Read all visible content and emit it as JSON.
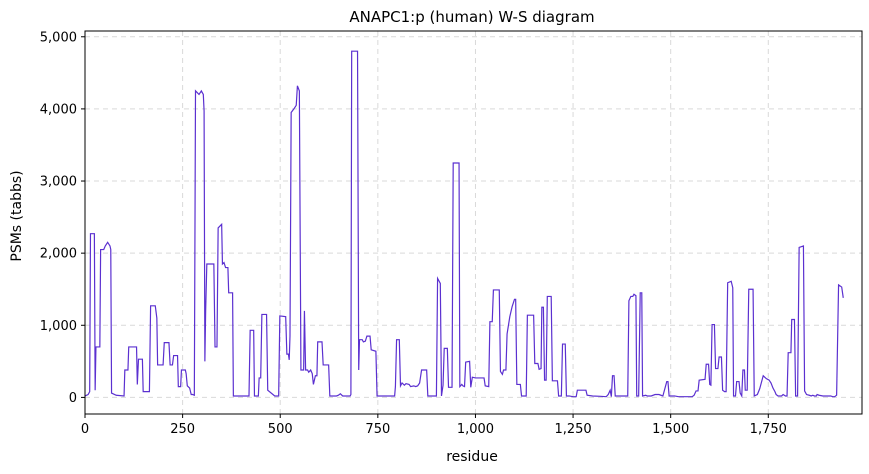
{
  "chart_data": {
    "type": "line",
    "title": "ANAPC1:p (human) W-S diagram",
    "xlabel": "residue",
    "ylabel": "PSMs (tabbs)",
    "xlim": [
      0,
      1990
    ],
    "ylim": [
      -230,
      5080
    ],
    "grid": true,
    "legend": "none",
    "colors": {
      "line": "#5b30d0"
    },
    "x_ticks": [
      {
        "value": 0,
        "label": "0"
      },
      {
        "value": 250,
        "label": "250"
      },
      {
        "value": 500,
        "label": "500"
      },
      {
        "value": 750,
        "label": "750"
      },
      {
        "value": 1000,
        "label": "1,000"
      },
      {
        "value": 1250,
        "label": "1,250"
      },
      {
        "value": 1500,
        "label": "1,500"
      },
      {
        "value": 1750,
        "label": "1,750"
      }
    ],
    "y_ticks": [
      {
        "value": 0,
        "label": "0"
      },
      {
        "value": 1000,
        "label": "1,000"
      },
      {
        "value": 2000,
        "label": "2,000"
      },
      {
        "value": 3000,
        "label": "3,000"
      },
      {
        "value": 4000,
        "label": "4,000"
      },
      {
        "value": 5000,
        "label": "5,000"
      }
    ],
    "series": [
      {
        "points": [
          [
            0,
            20
          ],
          [
            8,
            40
          ],
          [
            12,
            80
          ],
          [
            14,
            2270
          ],
          [
            24,
            2270
          ],
          [
            26,
            100
          ],
          [
            28,
            700
          ],
          [
            38,
            700
          ],
          [
            40,
            2050
          ],
          [
            48,
            2050
          ],
          [
            52,
            2100
          ],
          [
            58,
            2150
          ],
          [
            64,
            2100
          ],
          [
            66,
            2050
          ],
          [
            68,
            60
          ],
          [
            80,
            30
          ],
          [
            100,
            20
          ],
          [
            102,
            380
          ],
          [
            110,
            380
          ],
          [
            112,
            700
          ],
          [
            132,
            700
          ],
          [
            134,
            180
          ],
          [
            137,
            530
          ],
          [
            147,
            530
          ],
          [
            149,
            80
          ],
          [
            165,
            80
          ],
          [
            168,
            1270
          ],
          [
            180,
            1270
          ],
          [
            184,
            1100
          ],
          [
            186,
            450
          ],
          [
            200,
            450
          ],
          [
            203,
            760
          ],
          [
            215,
            760
          ],
          [
            218,
            450
          ],
          [
            224,
            450
          ],
          [
            227,
            580
          ],
          [
            237,
            580
          ],
          [
            239,
            150
          ],
          [
            245,
            150
          ],
          [
            247,
            380
          ],
          [
            257,
            380
          ],
          [
            259,
            330
          ],
          [
            262,
            160
          ],
          [
            268,
            130
          ],
          [
            272,
            40
          ],
          [
            276,
            40
          ],
          [
            280,
            30
          ],
          [
            283,
            4250
          ],
          [
            292,
            4200
          ],
          [
            298,
            4250
          ],
          [
            303,
            4200
          ],
          [
            305,
            3970
          ],
          [
            307,
            500
          ],
          [
            309,
            1200
          ],
          [
            312,
            1850
          ],
          [
            330,
            1850
          ],
          [
            333,
            700
          ],
          [
            338,
            700
          ],
          [
            341,
            2350
          ],
          [
            350,
            2400
          ],
          [
            352,
            1850
          ],
          [
            356,
            1870
          ],
          [
            360,
            1800
          ],
          [
            366,
            1800
          ],
          [
            368,
            1450
          ],
          [
            378,
            1450
          ],
          [
            380,
            20
          ],
          [
            420,
            20
          ],
          [
            423,
            930
          ],
          [
            432,
            930
          ],
          [
            434,
            20
          ],
          [
            444,
            20
          ],
          [
            446,
            270
          ],
          [
            450,
            270
          ],
          [
            453,
            1150
          ],
          [
            465,
            1150
          ],
          [
            468,
            100
          ],
          [
            486,
            20
          ],
          [
            496,
            20
          ],
          [
            499,
            1130
          ],
          [
            514,
            1120
          ],
          [
            517,
            600
          ],
          [
            521,
            600
          ],
          [
            523,
            520
          ],
          [
            525,
            850
          ],
          [
            528,
            3950
          ],
          [
            535,
            4000
          ],
          [
            541,
            4050
          ],
          [
            544,
            4320
          ],
          [
            549,
            4250
          ],
          [
            553,
            380
          ],
          [
            560,
            380
          ],
          [
            562,
            1200
          ],
          [
            565,
            380
          ],
          [
            570,
            380
          ],
          [
            573,
            350
          ],
          [
            578,
            380
          ],
          [
            582,
            330
          ],
          [
            585,
            180
          ],
          [
            590,
            300
          ],
          [
            594,
            300
          ],
          [
            596,
            770
          ],
          [
            607,
            770
          ],
          [
            610,
            450
          ],
          [
            624,
            450
          ],
          [
            627,
            20
          ],
          [
            640,
            20
          ],
          [
            644,
            20
          ],
          [
            649,
            30
          ],
          [
            654,
            50
          ],
          [
            660,
            20
          ],
          [
            667,
            20
          ],
          [
            679,
            20
          ],
          [
            681,
            40
          ],
          [
            683,
            4800
          ],
          [
            698,
            4800
          ],
          [
            701,
            380
          ],
          [
            703,
            800
          ],
          [
            710,
            800
          ],
          [
            713,
            770
          ],
          [
            718,
            780
          ],
          [
            722,
            850
          ],
          [
            730,
            850
          ],
          [
            733,
            660
          ],
          [
            745,
            640
          ],
          [
            748,
            20
          ],
          [
            793,
            20
          ],
          [
            795,
            150
          ],
          [
            798,
            800
          ],
          [
            805,
            800
          ],
          [
            808,
            160
          ],
          [
            812,
            200
          ],
          [
            818,
            170
          ],
          [
            822,
            190
          ],
          [
            830,
            180
          ],
          [
            834,
            150
          ],
          [
            842,
            160
          ],
          [
            847,
            150
          ],
          [
            852,
            160
          ],
          [
            857,
            200
          ],
          [
            862,
            380
          ],
          [
            875,
            380
          ],
          [
            878,
            20
          ],
          [
            900,
            20
          ],
          [
            903,
            1650
          ],
          [
            910,
            1580
          ],
          [
            913,
            20
          ],
          [
            917,
            170
          ],
          [
            920,
            680
          ],
          [
            928,
            680
          ],
          [
            931,
            140
          ],
          [
            940,
            140
          ],
          [
            943,
            3250
          ],
          [
            958,
            3250
          ],
          [
            960,
            150
          ],
          [
            965,
            180
          ],
          [
            968,
            160
          ],
          [
            972,
            150
          ],
          [
            975,
            490
          ],
          [
            985,
            500
          ],
          [
            988,
            140
          ],
          [
            992,
            280
          ],
          [
            1000,
            270
          ],
          [
            1022,
            270
          ],
          [
            1025,
            160
          ],
          [
            1034,
            150
          ],
          [
            1037,
            1050
          ],
          [
            1043,
            1050
          ],
          [
            1046,
            1490
          ],
          [
            1061,
            1490
          ],
          [
            1064,
            360
          ],
          [
            1069,
            320
          ],
          [
            1072,
            380
          ],
          [
            1078,
            380
          ],
          [
            1081,
            880
          ],
          [
            1088,
            1120
          ],
          [
            1094,
            1260
          ],
          [
            1100,
            1360
          ],
          [
            1103,
            1360
          ],
          [
            1106,
            180
          ],
          [
            1115,
            180
          ],
          [
            1118,
            20
          ],
          [
            1130,
            20
          ],
          [
            1133,
            1140
          ],
          [
            1149,
            1140
          ],
          [
            1152,
            470
          ],
          [
            1160,
            470
          ],
          [
            1163,
            390
          ],
          [
            1168,
            400
          ],
          [
            1170,
            1250
          ],
          [
            1174,
            1250
          ],
          [
            1177,
            240
          ],
          [
            1181,
            240
          ],
          [
            1184,
            1400
          ],
          [
            1194,
            1400
          ],
          [
            1197,
            230
          ],
          [
            1210,
            230
          ],
          [
            1213,
            20
          ],
          [
            1220,
            20
          ],
          [
            1223,
            740
          ],
          [
            1230,
            740
          ],
          [
            1233,
            20
          ],
          [
            1240,
            20
          ],
          [
            1250,
            10
          ],
          [
            1258,
            10
          ],
          [
            1261,
            100
          ],
          [
            1283,
            100
          ],
          [
            1286,
            30
          ],
          [
            1300,
            20
          ],
          [
            1320,
            15
          ],
          [
            1335,
            10
          ],
          [
            1340,
            40
          ],
          [
            1345,
            100
          ],
          [
            1348,
            10
          ],
          [
            1351,
            300
          ],
          [
            1355,
            300
          ],
          [
            1358,
            20
          ],
          [
            1370,
            20
          ],
          [
            1380,
            20
          ],
          [
            1390,
            20
          ],
          [
            1393,
            1340
          ],
          [
            1398,
            1400
          ],
          [
            1403,
            1400
          ],
          [
            1406,
            1430
          ],
          [
            1411,
            1410
          ],
          [
            1413,
            20
          ],
          [
            1418,
            20
          ],
          [
            1422,
            1450
          ],
          [
            1426,
            1450
          ],
          [
            1428,
            20
          ],
          [
            1436,
            30
          ],
          [
            1440,
            20
          ],
          [
            1450,
            20
          ],
          [
            1460,
            40
          ],
          [
            1470,
            40
          ],
          [
            1475,
            30
          ],
          [
            1480,
            20
          ],
          [
            1490,
            220
          ],
          [
            1493,
            220
          ],
          [
            1496,
            20
          ],
          [
            1510,
            20
          ],
          [
            1520,
            10
          ],
          [
            1540,
            10
          ],
          [
            1555,
            10
          ],
          [
            1560,
            30
          ],
          [
            1565,
            90
          ],
          [
            1570,
            90
          ],
          [
            1573,
            240
          ],
          [
            1588,
            250
          ],
          [
            1591,
            460
          ],
          [
            1597,
            460
          ],
          [
            1600,
            180
          ],
          [
            1603,
            170
          ],
          [
            1606,
            1010
          ],
          [
            1612,
            1010
          ],
          [
            1615,
            400
          ],
          [
            1621,
            400
          ],
          [
            1624,
            560
          ],
          [
            1630,
            560
          ],
          [
            1633,
            100
          ],
          [
            1638,
            80
          ],
          [
            1642,
            80
          ],
          [
            1646,
            1590
          ],
          [
            1655,
            1610
          ],
          [
            1659,
            1520
          ],
          [
            1661,
            20
          ],
          [
            1666,
            20
          ],
          [
            1669,
            220
          ],
          [
            1675,
            220
          ],
          [
            1678,
            60
          ],
          [
            1682,
            20
          ],
          [
            1685,
            380
          ],
          [
            1689,
            380
          ],
          [
            1691,
            100
          ],
          [
            1696,
            100
          ],
          [
            1700,
            1500
          ],
          [
            1711,
            1500
          ],
          [
            1714,
            20
          ],
          [
            1722,
            40
          ],
          [
            1728,
            120
          ],
          [
            1732,
            200
          ],
          [
            1737,
            300
          ],
          [
            1745,
            260
          ],
          [
            1752,
            240
          ],
          [
            1757,
            200
          ],
          [
            1762,
            130
          ],
          [
            1767,
            80
          ],
          [
            1770,
            40
          ],
          [
            1775,
            20
          ],
          [
            1780,
            20
          ],
          [
            1784,
            20
          ],
          [
            1788,
            40
          ],
          [
            1794,
            20
          ],
          [
            1798,
            20
          ],
          [
            1801,
            620
          ],
          [
            1808,
            620
          ],
          [
            1810,
            1080
          ],
          [
            1817,
            1080
          ],
          [
            1820,
            20
          ],
          [
            1825,
            20
          ],
          [
            1829,
            2080
          ],
          [
            1840,
            2100
          ],
          [
            1843,
            90
          ],
          [
            1848,
            40
          ],
          [
            1855,
            30
          ],
          [
            1860,
            20
          ],
          [
            1864,
            30
          ],
          [
            1868,
            20
          ],
          [
            1873,
            20
          ],
          [
            1875,
            40
          ],
          [
            1880,
            30
          ],
          [
            1890,
            20
          ],
          [
            1905,
            20
          ],
          [
            1910,
            20
          ],
          [
            1915,
            10
          ],
          [
            1920,
            10
          ],
          [
            1925,
            30
          ],
          [
            1930,
            1560
          ],
          [
            1938,
            1530
          ],
          [
            1942,
            1380
          ]
        ]
      }
    ]
  }
}
